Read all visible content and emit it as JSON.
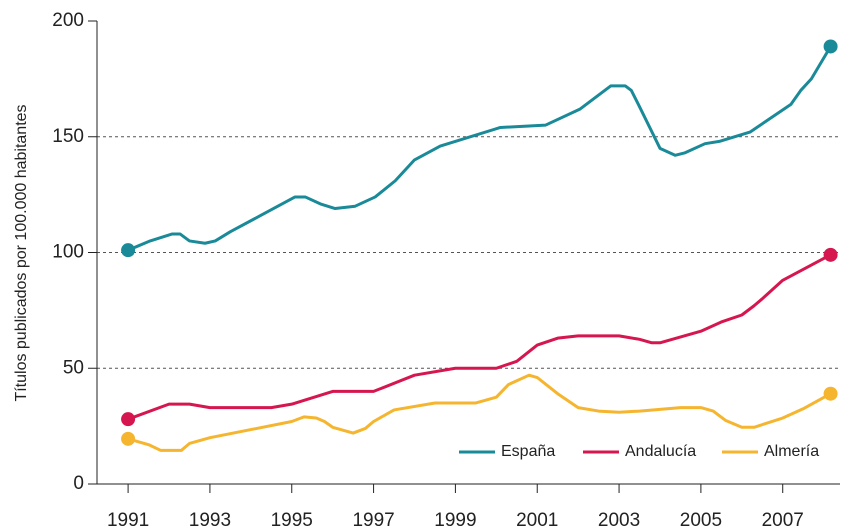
{
  "chart_data": {
    "type": "line",
    "y_label": "Títulos publicados por 100.000 habitantes",
    "xlim": [
      1990.24,
      2008.4
    ],
    "xticks": [
      1991,
      1993,
      1995,
      1997,
      1999,
      2001,
      2003,
      2005,
      2007
    ],
    "ylim": [
      0,
      200
    ],
    "yticks": [
      0,
      50,
      100,
      150,
      200
    ],
    "grid": true,
    "legend": "lower right",
    "series": [
      {
        "name": "España",
        "color": "#1a8a99",
        "x": [
          1991,
          1991.54,
          1992.08,
          1992.27,
          1992.5,
          1992.88,
          1993.13,
          1993.5,
          1994.24,
          1995.08,
          1995.33,
          1995.7,
          1996.06,
          1996.55,
          1997.04,
          1997.53,
          1998,
          1998.63,
          2000.1,
          2001.2,
          2002.05,
          2002.8,
          2003.15,
          2003.3,
          2003.5,
          2004,
          2004.37,
          2004.6,
          2005.1,
          2005.45,
          2006.2,
          2007.2,
          2007.44,
          2007.7,
          2008.17
        ],
        "values": [
          101,
          105,
          108,
          108,
          105,
          104,
          105,
          109,
          116,
          124,
          124,
          121,
          119,
          120,
          124,
          131,
          140,
          146,
          154,
          155,
          162,
          172,
          172,
          170,
          163,
          145,
          142,
          143,
          147,
          148,
          152,
          164,
          170,
          175,
          189
        ]
      },
      {
        "name": "Andalucía",
        "color": "#d6164f",
        "x": [
          1991,
          1992,
          1992.5,
          1993,
          1994.5,
          1995,
          1996,
          1997,
          1998,
          1999,
          2000,
          2000.5,
          2001,
          2001.5,
          2002,
          2003,
          2003.5,
          2003.8,
          2004,
          2005,
          2005.5,
          2006,
          2006.3,
          2006.5,
          2007,
          2008.17
        ],
        "values": [
          28,
          34.5,
          34.5,
          33,
          33,
          34.5,
          40,
          40,
          47,
          50,
          50,
          53,
          60,
          63,
          64,
          64,
          62.5,
          61,
          61,
          66,
          70,
          73,
          77,
          80,
          88,
          99
        ]
      },
      {
        "name": "Almería",
        "color": "#f5b52e",
        "x": [
          1991,
          1991.5,
          1991.8,
          1992.3,
          1992.5,
          1993,
          1995,
          1995.3,
          1995.6,
          1995.8,
          1996,
          1996.5,
          1996.8,
          1997,
          1997.5,
          1998.5,
          1999.5,
          2000,
          2000.3,
          2000.8,
          2001,
          2001.5,
          2002,
          2002.5,
          2003,
          2003.5,
          2004.5,
          2005,
          2005.3,
          2005.6,
          2006,
          2006.3,
          2007,
          2007.5,
          2008.17
        ],
        "values": [
          19.5,
          17,
          14.5,
          14.5,
          17.5,
          20,
          27,
          29,
          28.5,
          27,
          24.5,
          22,
          24,
          27,
          32,
          35,
          35,
          37.5,
          43,
          47,
          46,
          39,
          33,
          31.5,
          31,
          31.5,
          33,
          33,
          31.5,
          27.5,
          24.5,
          24.5,
          28.5,
          32.5,
          39
        ]
      }
    ]
  }
}
